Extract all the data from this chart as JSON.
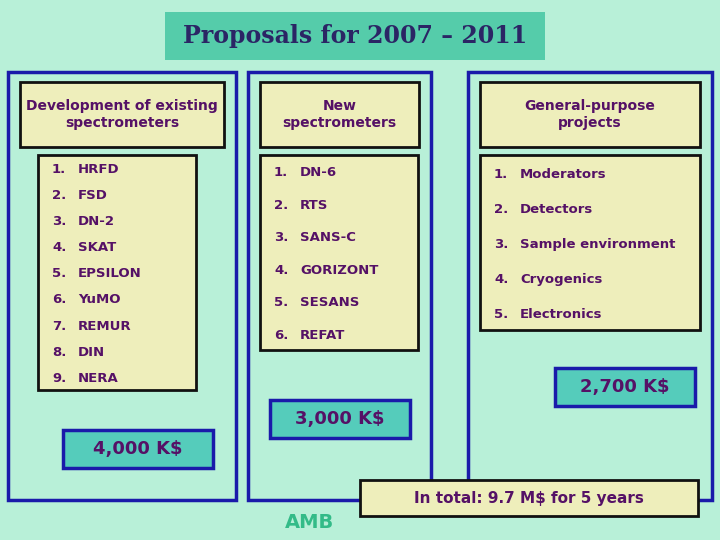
{
  "title": "Proposals for 2007 – 2011",
  "bg_color": "#b8f0d8",
  "title_bg": "#55ccaa",
  "title_color": "#2b2565",
  "box_bg_light": "#eeeebb",
  "box_bg_teal": "#55ccbb",
  "border_blue": "#1a1aaa",
  "border_black": "#111111",
  "text_color": "#551166",
  "teal_text": "#33bb88",
  "col1_header": "Development of existing\nspectrometers",
  "col2_header": "New\nspectrometers",
  "col3_header": "General-purpose\nprojects",
  "col1_items": [
    "HRFD",
    "FSD",
    "DN-2",
    "SKAT",
    "EPSILON",
    "YuMO",
    "REMUR",
    "DIN",
    "NERA"
  ],
  "col2_items": [
    "DN-6",
    "RTS",
    "SANS-C",
    "GORIZONT",
    "SESANS",
    "REFAT"
  ],
  "col3_items": [
    "Moderators",
    "Detectors",
    "Sample environment",
    "Cryogenics",
    "Electronics"
  ],
  "col1_cost": "4,000 K$",
  "col2_cost": "3,000 K$",
  "col3_cost": "2,700 K$",
  "total": "In total: 9.7 M$ for 5 years",
  "footer": "AMB"
}
